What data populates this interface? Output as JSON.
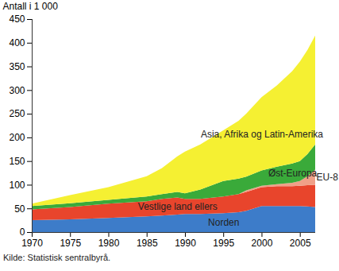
{
  "chart_data": {
    "type": "area",
    "stacked": true,
    "y_label": "Antall i 1 000",
    "caption": "Kilde: Statistisk sentralbyrå.",
    "x": [
      1970,
      1975,
      1980,
      1985,
      1987,
      1989,
      1990,
      1992,
      1995,
      1997,
      1998,
      2000,
      2002,
      2004,
      2005,
      2006,
      2007
    ],
    "series": [
      {
        "name": "Norden",
        "color": "#3d7cc9",
        "values": [
          25,
          27,
          30,
          33,
          35,
          37,
          38,
          38,
          40,
          42,
          45,
          55,
          55,
          55,
          55,
          54,
          53
        ]
      },
      {
        "name": "Vestlige land ellers",
        "color": "#e8452c",
        "values": [
          23,
          26,
          30,
          32,
          35,
          36,
          32,
          32,
          35,
          38,
          40,
          40,
          42,
          42,
          43,
          45,
          47
        ]
      },
      {
        "name": "EU-8",
        "color": "#f0a088",
        "values": [
          0,
          0,
          0,
          0,
          0,
          0,
          0,
          0,
          0,
          0,
          3,
          3,
          4,
          7,
          10,
          19,
          32
        ]
      },
      {
        "name": "Øst-Europa",
        "color": "#3aaa3a",
        "values": [
          7,
          8,
          8,
          10,
          10,
          12,
          12,
          20,
          33,
          33,
          29,
          32,
          37,
          41,
          42,
          47,
          53
        ]
      },
      {
        "name": "Asia, Afrika og Latin-Amerika",
        "color": "#f5f032",
        "values": [
          5,
          17,
          27,
          43,
          55,
          75,
          88,
          95,
          107,
          122,
          133,
          155,
          172,
          195,
          210,
          220,
          230
        ]
      }
    ],
    "xlim": [
      1970,
      2007
    ],
    "xticks": [
      1970,
      1975,
      1980,
      1985,
      1990,
      1995,
      2000,
      2005
    ],
    "ylim": [
      0,
      450
    ],
    "yticks": [
      0,
      50,
      100,
      150,
      200,
      250,
      300,
      350,
      400,
      450
    ],
    "grid": false,
    "data_labels": false
  }
}
